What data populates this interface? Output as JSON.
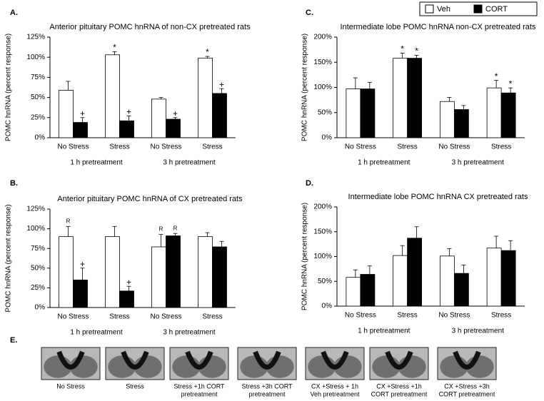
{
  "chart_data": [
    {
      "type": "bar",
      "label": "A.",
      "title": "Anterior pituitary POMC hnRNA of non-CX pretreated rats",
      "y_label": "POMC hnRNA (percent response)",
      "categories": [
        "No Stress",
        "Stress",
        "No Stress",
        "Stress"
      ],
      "groups": [
        "1 h pretreatment",
        "3 h pretreatment"
      ],
      "series": [
        {
          "name": "Veh",
          "color": "#ffffff",
          "values": [
            59,
            103,
            48,
            99
          ],
          "errors": [
            11,
            4,
            2,
            2
          ],
          "annotations": [
            null,
            "*",
            null,
            "*"
          ]
        },
        {
          "name": "CORT",
          "color": "#000000",
          "values": [
            19,
            21,
            23,
            55
          ],
          "errors": [
            6,
            6,
            2,
            6
          ],
          "annotations": [
            "+",
            "+",
            "+",
            "+"
          ]
        }
      ],
      "ylim": [
        0,
        125
      ],
      "yticks": [
        {
          "value": 0,
          "label": "0%"
        },
        {
          "value": 25,
          "label": "25%"
        },
        {
          "value": 50,
          "label": "50%"
        },
        {
          "value": 75,
          "label": "75%"
        },
        {
          "value": 100,
          "label": "100%"
        },
        {
          "value": 125,
          "label": "125%"
        }
      ]
    },
    {
      "type": "bar",
      "label": "B.",
      "title": "Anterior pituitary POMC hnRNA of CX pretreated rats",
      "y_label": "POMC hnRNA (percent response)",
      "categories": [
        "No Stress",
        "Stress",
        "No Stress",
        "Stress"
      ],
      "groups": [
        "1 h pretreatment",
        "3 h pretreatment"
      ],
      "series": [
        {
          "name": "Veh",
          "color": "#ffffff",
          "values": [
            90,
            90,
            77,
            90
          ],
          "errors": [
            13,
            13,
            16,
            5
          ],
          "annotations": [
            "R",
            null,
            "R",
            null
          ]
        },
        {
          "name": "CORT",
          "color": "#000000",
          "values": [
            35,
            21,
            91,
            77
          ],
          "errors": [
            15,
            6,
            3,
            7
          ],
          "annotations": [
            "+",
            "+",
            "R",
            null
          ]
        }
      ],
      "ylim": [
        0,
        125
      ],
      "yticks": [
        {
          "value": 0,
          "label": "0%"
        },
        {
          "value": 25,
          "label": "25%"
        },
        {
          "value": 50,
          "label": "50%"
        },
        {
          "value": 75,
          "label": "75%"
        },
        {
          "value": 100,
          "label": "100%"
        },
        {
          "value": 125,
          "label": "125%"
        }
      ]
    },
    {
      "type": "bar",
      "label": "C.",
      "title": "Intermediate lobe POMC hnRNA non-CX pretreated rats",
      "y_label": "POMC hnRNA (percent response)",
      "categories": [
        "No Stress",
        "Stress",
        "No Stress",
        "Stress"
      ],
      "groups": [
        "1 h pretreatment",
        "3 h pretreatment"
      ],
      "series": [
        {
          "name": "Veh",
          "color": "#ffffff",
          "values": [
            97,
            158,
            72,
            99
          ],
          "errors": [
            22,
            10,
            8,
            15
          ],
          "annotations": [
            null,
            "*",
            null,
            "*"
          ]
        },
        {
          "name": "CORT",
          "color": "#000000",
          "values": [
            97,
            158,
            56,
            89
          ],
          "errors": [
            13,
            6,
            8,
            10
          ],
          "annotations": [
            null,
            "*",
            null,
            "*"
          ]
        }
      ],
      "ylim": [
        0,
        200
      ],
      "yticks": [
        {
          "value": 0,
          "label": "0%"
        },
        {
          "value": 50,
          "label": "50%"
        },
        {
          "value": 100,
          "label": "100%"
        },
        {
          "value": 150,
          "label": "150%"
        },
        {
          "value": 200,
          "label": "200%"
        }
      ]
    },
    {
      "type": "bar",
      "label": "D.",
      "title": "Intermediate lobe POMC hnRNA CX pretreated rats",
      "y_label": "POMC hnRNA (percent response)",
      "categories": [
        "No Stress",
        "Stress",
        "No Stress",
        "Stress"
      ],
      "groups": [
        "1 h pretreatment",
        "3 h pretreatment"
      ],
      "series": [
        {
          "name": "Veh",
          "color": "#ffffff",
          "values": [
            58,
            102,
            101,
            117
          ],
          "errors": [
            15,
            20,
            15,
            24
          ],
          "annotations": [
            null,
            null,
            null,
            null
          ]
        },
        {
          "name": "CORT",
          "color": "#000000",
          "values": [
            64,
            137,
            66,
            112
          ],
          "errors": [
            17,
            23,
            17,
            20
          ],
          "annotations": [
            null,
            null,
            null,
            null
          ]
        }
      ],
      "ylim": [
        0,
        200
      ],
      "yticks": [
        {
          "value": 0,
          "label": "0%"
        },
        {
          "value": 50,
          "label": "50%"
        },
        {
          "value": 100,
          "label": "100%"
        },
        {
          "value": 150,
          "label": "150%"
        },
        {
          "value": 200,
          "label": "200%"
        }
      ]
    }
  ],
  "panel_e": {
    "label": "E.",
    "captions": [
      [
        "No Stress"
      ],
      [
        "Stress"
      ],
      [
        "Stress +1h CORT",
        "pretreatment"
      ],
      [
        "Stress +3h CORT",
        "pretreatment"
      ],
      [
        "CX +Stress + 1h",
        "Veh pretreatment"
      ],
      [
        "CX +Stress +1h",
        "CORT pretreatment"
      ],
      [
        "CX +Stress +3h",
        "CORT pretreatment"
      ]
    ]
  }
}
